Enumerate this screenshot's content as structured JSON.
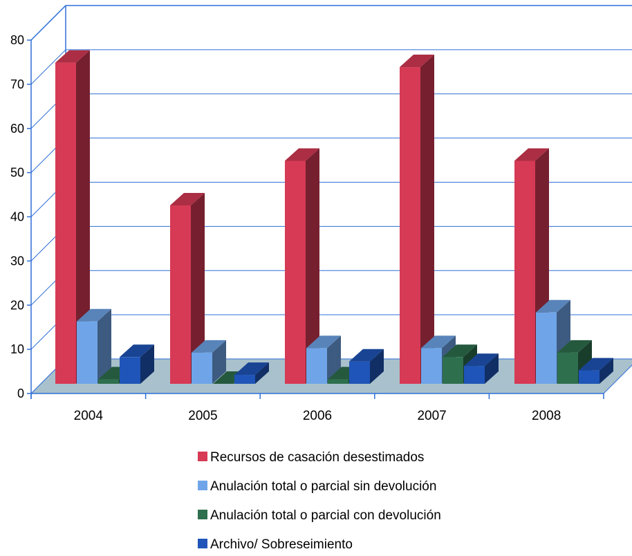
{
  "chart_data": {
    "type": "bar",
    "title": "",
    "xlabel": "",
    "ylabel": "",
    "categories": [
      "2004",
      "2005",
      "2006",
      "2007",
      "2008"
    ],
    "ylim": [
      0,
      80
    ],
    "yticks": [
      "0",
      "10",
      "20",
      "30",
      "40",
      "50",
      "60",
      "70",
      "80"
    ],
    "grid": true,
    "three_d": true,
    "legend_position": "bottom",
    "series": [
      {
        "name": "Recursos de casación desestimados",
        "values": [
          72,
          40,
          50,
          71,
          50
        ],
        "color": "#d63a55"
      },
      {
        "name": "Anulación total o parcial sin devolución",
        "values": [
          14,
          7,
          8,
          8,
          16
        ],
        "color": "#6fa5e8"
      },
      {
        "name": "Anulación total o parcial con devolución",
        "values": [
          1,
          0,
          1,
          6,
          7
        ],
        "color": "#2e6f4e"
      },
      {
        "name": "Archivo/ Sobreseimiento",
        "values": [
          6,
          2,
          5,
          4,
          3
        ],
        "color": "#1f55b8"
      }
    ]
  }
}
